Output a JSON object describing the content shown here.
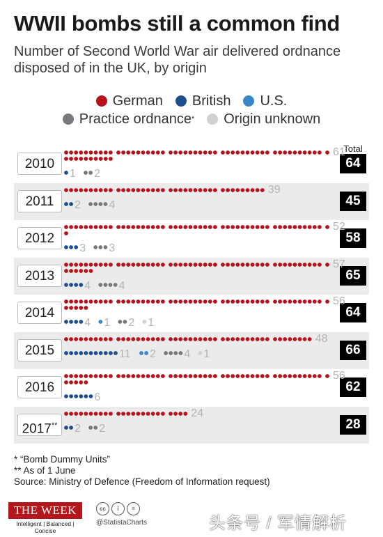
{
  "title": "WWII bombs still a common find",
  "subtitle": "Number of Second World War air delivered ordnance disposed of in the UK, by origin",
  "legend": {
    "german": "German",
    "british": "British",
    "us": "U.S.",
    "practice": "Practice ordnance",
    "practice_mark": "*",
    "unknown": "Origin unknown"
  },
  "colors": {
    "German": "#b5121b",
    "British": "#1f4e8c",
    "U.S.": "#3a86c8",
    "Practice ordnance": "#77797c",
    "Origin unknown": "#cfd1d3"
  },
  "total_header": "Total",
  "chart_data": {
    "type": "table",
    "categories": [
      "German",
      "British",
      "U.S.",
      "Practice ordnance",
      "Origin unknown"
    ],
    "rows": [
      {
        "year": "2010",
        "year_mark": "",
        "total": "64",
        "values": {
          "German": 61,
          "British": 1,
          "U.S.": 0,
          "Practice ordnance": 2,
          "Origin unknown": 0
        }
      },
      {
        "year": "2011",
        "year_mark": "",
        "total": "45",
        "values": {
          "German": 39,
          "British": 2,
          "U.S.": 0,
          "Practice ordnance": 4,
          "Origin unknown": 0
        }
      },
      {
        "year": "2012",
        "year_mark": "",
        "total": "58",
        "values": {
          "German": 52,
          "British": 3,
          "U.S.": 0,
          "Practice ordnance": 3,
          "Origin unknown": 0
        }
      },
      {
        "year": "2013",
        "year_mark": "",
        "total": "65",
        "values": {
          "German": 57,
          "British": 4,
          "U.S.": 0,
          "Practice ordnance": 4,
          "Origin unknown": 0
        }
      },
      {
        "year": "2014",
        "year_mark": "",
        "total": "64",
        "values": {
          "German": 56,
          "British": 4,
          "U.S.": 1,
          "Practice ordnance": 2,
          "Origin unknown": 1
        }
      },
      {
        "year": "2015",
        "year_mark": "",
        "total": "66",
        "values": {
          "German": 48,
          "British": 11,
          "U.S.": 2,
          "Practice ordnance": 4,
          "Origin unknown": 1
        }
      },
      {
        "year": "2016",
        "year_mark": "",
        "total": "62",
        "values": {
          "German": 56,
          "British": 6,
          "U.S.": 0,
          "Practice ordnance": 0,
          "Origin unknown": 0
        }
      },
      {
        "year": "2017",
        "year_mark": "**",
        "total": "28",
        "values": {
          "German": 24,
          "British": 2,
          "U.S.": 0,
          "Practice ordnance": 2,
          "Origin unknown": 0
        }
      }
    ]
  },
  "footnotes": {
    "f1": "*   “Bomb Dummy Units”",
    "f2": "** As of 1 June",
    "source": "Source: Ministry of Defence (Freedom of Information request)"
  },
  "footer": {
    "publisher": "THE WEEK",
    "tagline": "Intelligent | Balanced | Concise",
    "handle": "@StatistaCharts",
    "watermark": "头条号 / 军情解析"
  }
}
